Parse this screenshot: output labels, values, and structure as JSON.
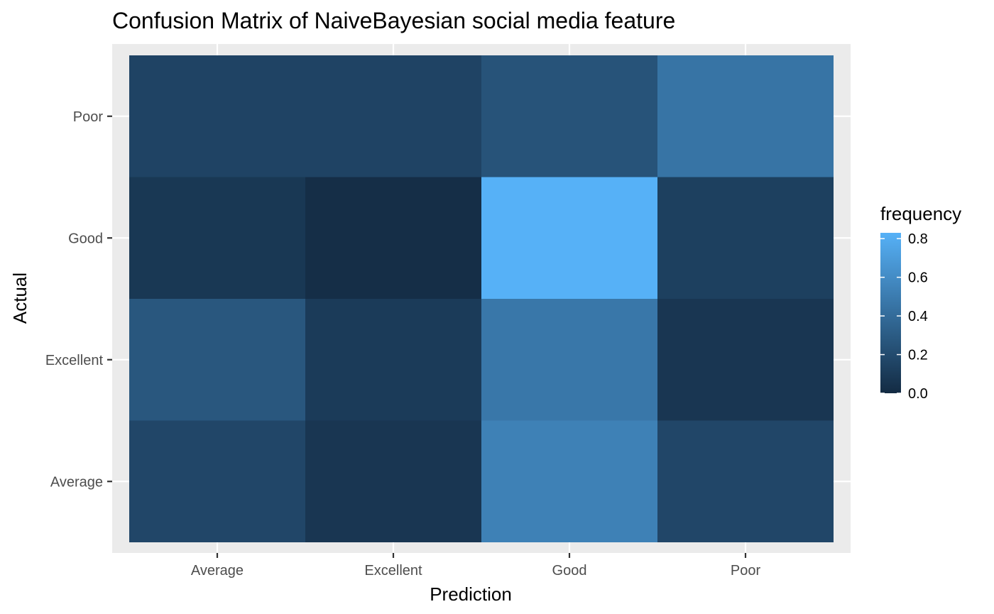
{
  "chart_data": {
    "type": "heatmap",
    "title": "Confusion Matrix of NaiveBayesian social media feature",
    "xlabel": "Prediction",
    "ylabel": "Actual",
    "x_categories": [
      "Average",
      "Excellent",
      "Good",
      "Poor"
    ],
    "y_categories": [
      "Average",
      "Excellent",
      "Good",
      "Poor"
    ],
    "cells": [
      {
        "x": "Average",
        "y": "Poor",
        "value": 0.15
      },
      {
        "x": "Excellent",
        "y": "Poor",
        "value": 0.15
      },
      {
        "x": "Good",
        "y": "Poor",
        "value": 0.25
      },
      {
        "x": "Poor",
        "y": "Poor",
        "value": 0.45
      },
      {
        "x": "Average",
        "y": "Good",
        "value": 0.08
      },
      {
        "x": "Excellent",
        "y": "Good",
        "value": 0.02
      },
      {
        "x": "Good",
        "y": "Good",
        "value": 0.83
      },
      {
        "x": "Poor",
        "y": "Good",
        "value": 0.13
      },
      {
        "x": "Average",
        "y": "Excellent",
        "value": 0.27
      },
      {
        "x": "Excellent",
        "y": "Excellent",
        "value": 0.1
      },
      {
        "x": "Good",
        "y": "Excellent",
        "value": 0.47
      },
      {
        "x": "Poor",
        "y": "Excellent",
        "value": 0.07
      },
      {
        "x": "Average",
        "y": "Average",
        "value": 0.17
      },
      {
        "x": "Excellent",
        "y": "Average",
        "value": 0.07
      },
      {
        "x": "Good",
        "y": "Average",
        "value": 0.53
      },
      {
        "x": "Poor",
        "y": "Average",
        "value": 0.17
      }
    ],
    "color_scale": {
      "low": "#132B43",
      "high": "#56B1F7",
      "min": 0.0,
      "max": 0.83
    },
    "legend": {
      "title": "frequency",
      "position": "right",
      "breaks": [
        0.0,
        0.2,
        0.4,
        0.6,
        0.8
      ],
      "labels": [
        "0.0",
        "0.2",
        "0.4",
        "0.6",
        "0.8"
      ]
    },
    "grid": true,
    "panel_background": "#EBEBEB"
  }
}
